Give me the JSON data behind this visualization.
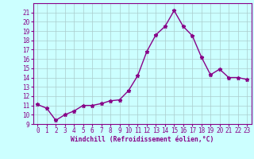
{
  "x": [
    0,
    1,
    2,
    3,
    4,
    5,
    6,
    7,
    8,
    9,
    10,
    11,
    12,
    13,
    14,
    15,
    16,
    17,
    18,
    19,
    20,
    21,
    22,
    23
  ],
  "y": [
    11.1,
    10.7,
    9.4,
    10.0,
    10.4,
    11.0,
    11.0,
    11.2,
    11.5,
    11.6,
    12.6,
    14.2,
    16.8,
    18.6,
    19.5,
    21.2,
    19.5,
    18.5,
    16.2,
    14.3,
    14.9,
    14.0,
    14.0,
    13.8
  ],
  "line_color": "#880088",
  "marker": "*",
  "marker_size": 3.5,
  "bg_color": "#ccffff",
  "grid_color": "#aacccc",
  "xlabel": "Windchill (Refroidissement éolien,°C)",
  "tick_color": "#880088",
  "ylim": [
    9,
    22
  ],
  "xlim": [
    -0.5,
    23.5
  ],
  "yticks": [
    9,
    10,
    11,
    12,
    13,
    14,
    15,
    16,
    17,
    18,
    19,
    20,
    21
  ],
  "xticks": [
    0,
    1,
    2,
    3,
    4,
    5,
    6,
    7,
    8,
    9,
    10,
    11,
    12,
    13,
    14,
    15,
    16,
    17,
    18,
    19,
    20,
    21,
    22,
    23
  ],
  "tick_fontsize": 5.5,
  "xlabel_fontsize": 5.8,
  "linewidth": 1.0
}
